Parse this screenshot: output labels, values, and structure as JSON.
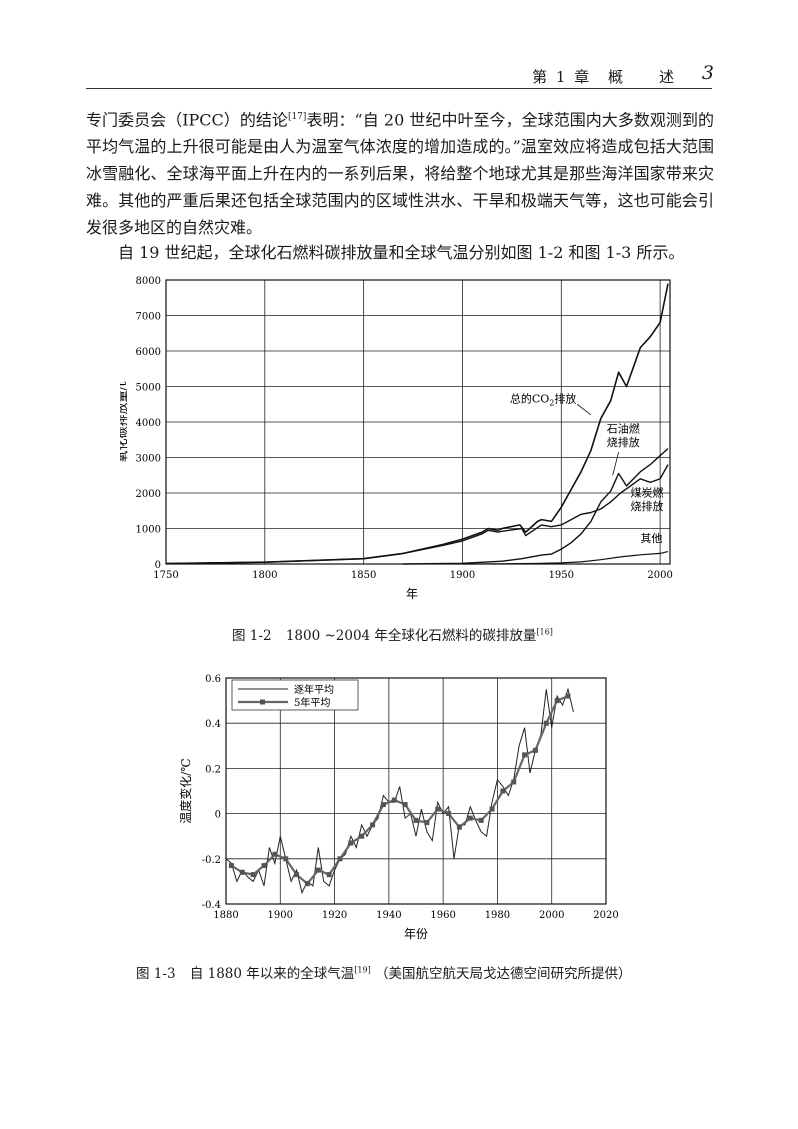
{
  "header": {
    "chapter": "第 1 章",
    "title": "概　　述",
    "page": "3"
  },
  "paragraph1": {
    "before_ref": "专门委员会（IPCC）的结论",
    "ref": "[17]",
    "after_ref": "表明：“自 20 世纪中叶至今，全球范围内大多数观测到的平均气温的上升很可能是由人为温室气体浓度的增加造成的。”温室效应将造成包括大范围冰雪融化、全球海平面上升在内的一系列后果，将给整个地球尤其是那些海洋国家带来灾难。其他的严重后果还包括全球范围内的区域性洪水、干旱和极端天气等，这也可能会引发很多地区的自然灾难。"
  },
  "paragraph2": {
    "text": "自 19 世纪起，全球化石燃料碳排放量和全球气温分别如图 1-2 和图 1-3 所示。"
  },
  "figure2_caption": {
    "number": "图 1-2",
    "text": "1800 ~2004 年全球化石燃料的碳排放量",
    "ref": "[16]"
  },
  "figure3_caption": {
    "number": "图 1-3",
    "text": "自 1880 年以来的全球气温",
    "ref": "[19]",
    "source": "（美国航空航天局戈达德空间研究所提供）"
  },
  "chart_data": [
    {
      "type": "line",
      "xlabel": "年",
      "ylabel": "氧化碳排放量/t",
      "xlim": [
        1750,
        2005
      ],
      "ylim": [
        0,
        8000
      ],
      "x_ticks": [
        "1750",
        "1800",
        "1850",
        "1900",
        "1950",
        "2000"
      ],
      "y_ticks": [
        "0",
        "1000",
        "2000",
        "3000",
        "4000",
        "5000",
        "6000",
        "7000",
        "8000"
      ],
      "grid": true,
      "series": [
        {
          "name": "总的CO2排放",
          "label_main": "总的CO",
          "label_sub": "2",
          "label_tail": "排放",
          "x": [
            1750,
            1800,
            1850,
            1870,
            1890,
            1900,
            1910,
            1913,
            1918,
            1920,
            1929,
            1932,
            1938,
            1940,
            1945,
            1950,
            1955,
            1960,
            1965,
            1970,
            1975,
            1979,
            1983,
            1990,
            1995,
            2000,
            2004
          ],
          "y": [
            10,
            50,
            150,
            300,
            550,
            700,
            900,
            1000,
            950,
            1000,
            1100,
            900,
            1200,
            1250,
            1200,
            1600,
            2100,
            2600,
            3200,
            4100,
            4600,
            5400,
            5000,
            6100,
            6400,
            6800,
            7900
          ]
        },
        {
          "name": "石油燃烧排放",
          "label_line1": "石油燃",
          "label_line2": "烧排放",
          "x": [
            1870,
            1900,
            1920,
            1930,
            1940,
            1945,
            1950,
            1955,
            1960,
            1965,
            1970,
            1975,
            1979,
            1983,
            1990,
            1995,
            2000,
            2004
          ],
          "y": [
            0,
            20,
            80,
            150,
            250,
            280,
            420,
            600,
            850,
            1200,
            1750,
            2050,
            2550,
            2200,
            2600,
            2800,
            3050,
            3250
          ]
        },
        {
          "name": "煤炭燃烧排放",
          "label_line1": "煤炭燃",
          "label_line2": "烧排放",
          "x": [
            1750,
            1800,
            1850,
            1870,
            1890,
            1900,
            1910,
            1913,
            1918,
            1920,
            1930,
            1932,
            1940,
            1945,
            1950,
            1955,
            1960,
            1965,
            1970,
            1975,
            1980,
            1985,
            1990,
            1995,
            2000,
            2004
          ],
          "y": [
            10,
            50,
            150,
            300,
            520,
            650,
            850,
            950,
            900,
            920,
            1000,
            800,
            1100,
            1050,
            1100,
            1250,
            1400,
            1450,
            1550,
            1750,
            2000,
            2200,
            2400,
            2300,
            2400,
            2800
          ]
        },
        {
          "name": "其他",
          "x": [
            1900,
            1920,
            1930,
            1940,
            1950,
            1960,
            1970,
            1980,
            1990,
            2000,
            2004
          ],
          "y": [
            0,
            5,
            10,
            20,
            30,
            60,
            120,
            200,
            260,
            300,
            350
          ]
        }
      ]
    },
    {
      "type": "line",
      "xlabel": "年份",
      "ylabel": "温度变化/℃",
      "xlim": [
        1880,
        2020
      ],
      "ylim": [
        -0.4,
        0.6
      ],
      "x_ticks": [
        "1880",
        "1900",
        "1920",
        "1940",
        "1960",
        "1980",
        "2000",
        "2020"
      ],
      "y_ticks": [
        "-0.4",
        "-0.2",
        "0",
        "0.2",
        "0.4",
        "0.6"
      ],
      "grid": true,
      "legend_position": "top-left",
      "series": [
        {
          "name": "逐年平均",
          "x": [
            1880,
            1882,
            1884,
            1886,
            1888,
            1890,
            1892,
            1894,
            1896,
            1898,
            1900,
            1902,
            1904,
            1906,
            1908,
            1910,
            1912,
            1914,
            1916,
            1918,
            1920,
            1922,
            1924,
            1926,
            1928,
            1930,
            1932,
            1934,
            1936,
            1938,
            1940,
            1942,
            1944,
            1946,
            1948,
            1950,
            1952,
            1954,
            1956,
            1958,
            1960,
            1962,
            1964,
            1966,
            1968,
            1970,
            1972,
            1974,
            1976,
            1978,
            1980,
            1982,
            1984,
            1986,
            1988,
            1990,
            1992,
            1994,
            1996,
            1998,
            2000,
            2002,
            2004,
            2006,
            2008
          ],
          "y": [
            -0.2,
            -0.22,
            -0.3,
            -0.25,
            -0.28,
            -0.3,
            -0.25,
            -0.32,
            -0.15,
            -0.22,
            -0.1,
            -0.2,
            -0.3,
            -0.25,
            -0.35,
            -0.3,
            -0.32,
            -0.15,
            -0.3,
            -0.32,
            -0.25,
            -0.2,
            -0.18,
            -0.1,
            -0.15,
            -0.05,
            -0.1,
            -0.05,
            -0.02,
            0.08,
            0.05,
            0.05,
            0.12,
            -0.02,
            0.0,
            -0.1,
            0.02,
            -0.08,
            -0.12,
            0.05,
            0.0,
            0.03,
            -0.2,
            -0.05,
            -0.05,
            0.03,
            -0.03,
            -0.08,
            -0.1,
            0.05,
            0.15,
            0.12,
            0.08,
            0.15,
            0.3,
            0.38,
            0.18,
            0.28,
            0.35,
            0.55,
            0.38,
            0.52,
            0.48,
            0.55,
            0.45
          ]
        },
        {
          "name": "5年平均",
          "x": [
            1882,
            1886,
            1890,
            1894,
            1898,
            1902,
            1906,
            1910,
            1914,
            1918,
            1922,
            1926,
            1930,
            1934,
            1938,
            1942,
            1946,
            1950,
            1954,
            1958,
            1962,
            1966,
            1970,
            1974,
            1978,
            1982,
            1986,
            1990,
            1994,
            1998,
            2002,
            2006
          ],
          "y": [
            -0.23,
            -0.26,
            -0.27,
            -0.23,
            -0.18,
            -0.2,
            -0.27,
            -0.31,
            -0.25,
            -0.27,
            -0.2,
            -0.13,
            -0.1,
            -0.05,
            0.04,
            0.06,
            0.04,
            -0.03,
            -0.04,
            0.02,
            0.0,
            -0.06,
            -0.02,
            -0.03,
            0.02,
            0.1,
            0.14,
            0.26,
            0.28,
            0.4,
            0.5,
            0.52
          ]
        }
      ]
    }
  ]
}
